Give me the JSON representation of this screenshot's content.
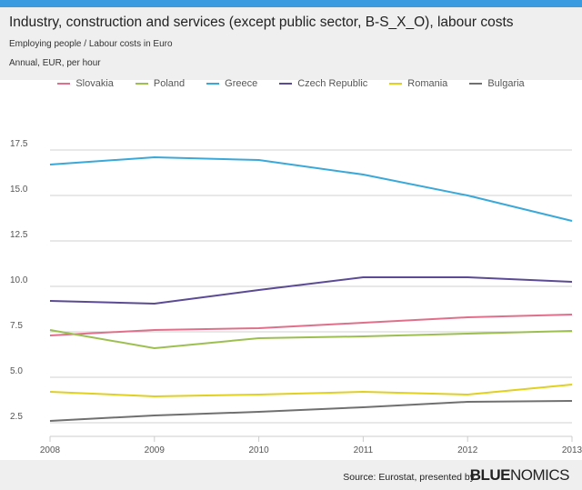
{
  "header": {
    "title": "Industry, construction and services (except public sector, B-S_X_O), labour costs",
    "subtitle1": "Employing people / Labour costs in Euro",
    "subtitle2": "Annual, EUR, per hour"
  },
  "footer": {
    "source": "Source: Eurostat, presented by",
    "logo": "BLUENOMICS",
    "logo_bold": "BLUE",
    "logo_light": "NOMICS"
  },
  "chart_data": {
    "type": "line",
    "title": "Industry, construction and services (except public sector, B-S_X_O), labour costs",
    "ylabel": "Annual, EUR, per hour",
    "x": [
      "2008",
      "2009",
      "2010",
      "2011",
      "2012",
      "2013"
    ],
    "yticks": [
      "2.5",
      "5.0",
      "7.5",
      "10.0",
      "12.5",
      "15.0",
      "17.5"
    ],
    "ylim": [
      2.5,
      17.5
    ],
    "grid": true,
    "legend": "top",
    "series": [
      {
        "name": "Slovakia",
        "color": "#e0708a",
        "values": [
          7.3,
          7.6,
          7.7,
          8.0,
          8.3,
          8.45
        ]
      },
      {
        "name": "Poland",
        "color": "#9cbf50",
        "values": [
          7.6,
          6.6,
          7.15,
          7.25,
          7.4,
          7.55
        ]
      },
      {
        "name": "Greece",
        "color": "#3aa8d8",
        "values": [
          16.7,
          17.1,
          16.95,
          16.15,
          15.0,
          13.6
        ]
      },
      {
        "name": "Czech Republic",
        "color": "#5b4a94",
        "values": [
          9.2,
          9.05,
          9.8,
          10.5,
          10.5,
          10.25
        ]
      },
      {
        "name": "Romania",
        "color": "#e0d020",
        "values": [
          4.2,
          3.95,
          4.05,
          4.2,
          4.05,
          4.6
        ]
      },
      {
        "name": "Bulgaria",
        "color": "#707070",
        "values": [
          2.6,
          2.9,
          3.1,
          3.35,
          3.65,
          3.7
        ]
      }
    ]
  }
}
